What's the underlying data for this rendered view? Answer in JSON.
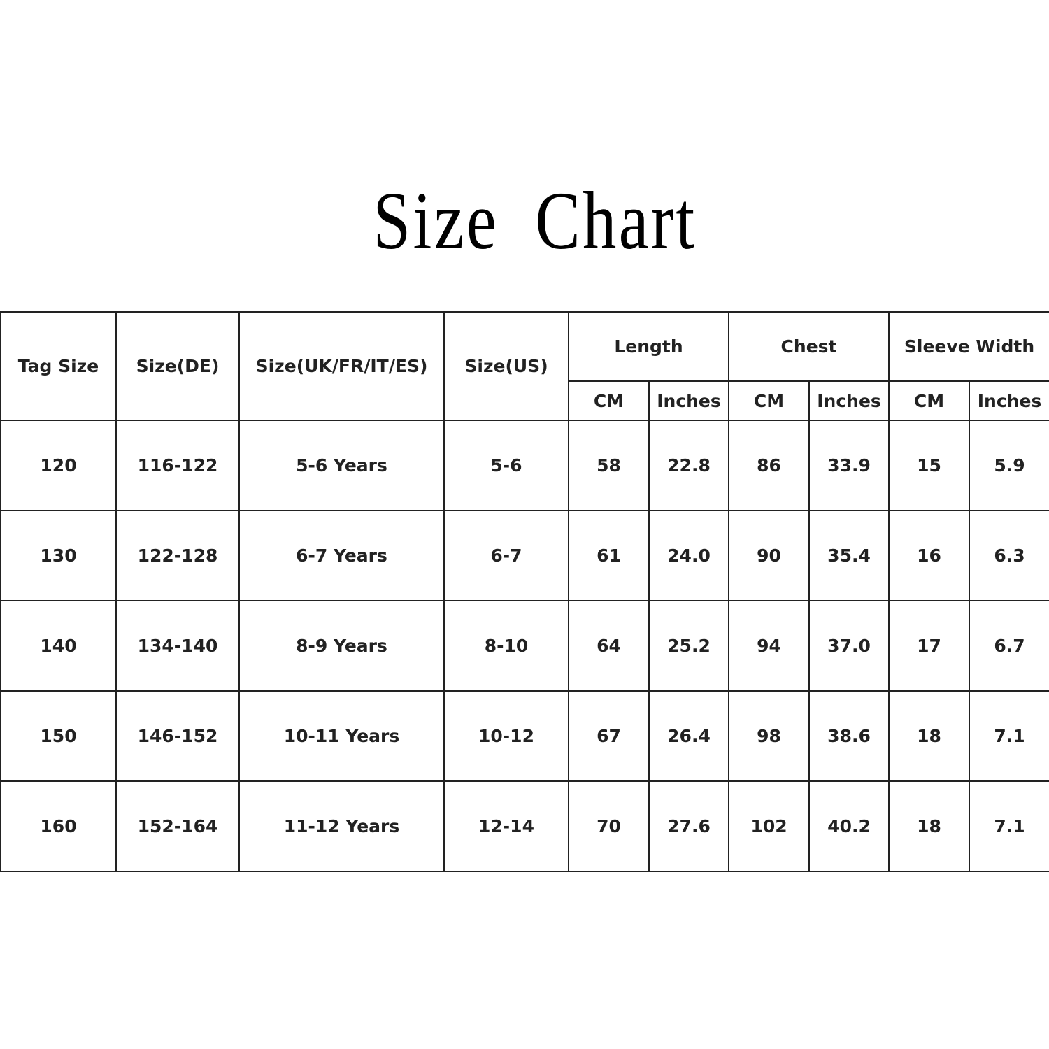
{
  "title": "Size Chart",
  "table": {
    "headers": [
      "Tag Size",
      "Size(DE)",
      "Size(UK/FR/IT/ES)",
      "Size(US)"
    ],
    "groups": [
      "Length",
      "Chest",
      "Sleeve Width"
    ],
    "subheaders": [
      "CM",
      "Inches"
    ],
    "rows": [
      [
        "120",
        "116-122",
        "5-6 Years",
        "5-6",
        "58",
        "22.8",
        "86",
        "33.9",
        "15",
        "5.9"
      ],
      [
        "130",
        "122-128",
        "6-7 Years",
        "6-7",
        "61",
        "24.0",
        "90",
        "35.4",
        "16",
        "6.3"
      ],
      [
        "140",
        "134-140",
        "8-9 Years",
        "8-10",
        "64",
        "25.2",
        "94",
        "37.0",
        "17",
        "6.7"
      ],
      [
        "150",
        "146-152",
        "10-11 Years",
        "10-12",
        "67",
        "26.4",
        "98",
        "38.6",
        "18",
        "7.1"
      ],
      [
        "160",
        "152-164",
        "11-12 Years",
        "12-14",
        "70",
        "27.6",
        "102",
        "40.2",
        "18",
        "7.1"
      ]
    ]
  }
}
